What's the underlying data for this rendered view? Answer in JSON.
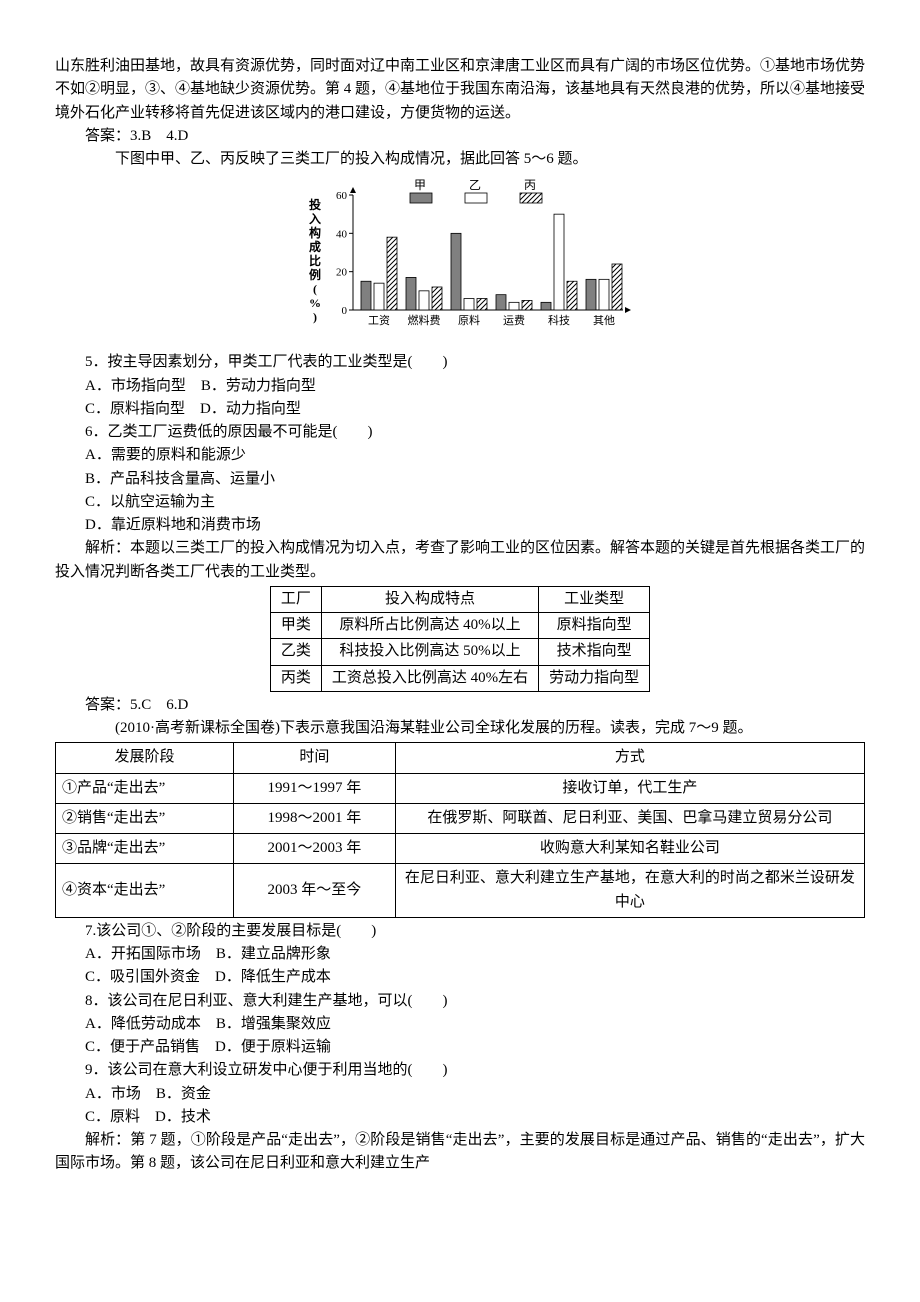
{
  "para1": "山东胜利油田基地，故具有资源优势，同时面对辽中南工业区和京津唐工业区而具有广阔的市场区位优势。①基地市场优势不如②明显，③、④基地缺少资源优势。第 4 题，④基地位于我国东南沿海，该基地具有天然良港的优势，所以④基地接受境外石化产业转移将首先促进该区域内的港口建设，方便货物的运送。",
  "ans34": "答案：3.B　4.D",
  "intro56": "下图中甲、乙、丙反映了三类工厂的投入构成情况，据此回答 5～6 题。",
  "chart": {
    "type": "bar",
    "y_title": "投入构成比例(%)",
    "y_min": 0,
    "y_max": 60,
    "y_step": 20,
    "categories": [
      "工资",
      "燃料费",
      "原料",
      "运费",
      "科技",
      "其他"
    ],
    "series": [
      {
        "name": "甲",
        "pattern": "solid-gray",
        "color": "#808080",
        "values": [
          15,
          17,
          40,
          8,
          4,
          16
        ]
      },
      {
        "name": "乙",
        "pattern": "hollow",
        "color": "#ffffff",
        "values": [
          14,
          10,
          6,
          4,
          50,
          16
        ]
      },
      {
        "name": "丙",
        "pattern": "hatch",
        "color": "#000000",
        "values": [
          38,
          12,
          6,
          5,
          15,
          24
        ]
      }
    ],
    "font_size": 12,
    "axis_font_size": 11,
    "bg": "#ffffff",
    "axis_color": "#000000"
  },
  "q5": {
    "stem": "5．按主导因素划分，甲类工厂代表的工业类型是(　　)",
    "a": "A．市场指向型　B．劳动力指向型",
    "b": "C．原料指向型　D．动力指向型"
  },
  "q6": {
    "stem": "6．乙类工厂运费低的原因最不可能是(　　)",
    "a": "A．需要的原料和能源少",
    "b": "B．产品科技含量高、运量小",
    "c": "C．以航空运输为主",
    "d": "D．靠近原料地和消费市场"
  },
  "analysis56": "解析：本题以三类工厂的投入构成情况为切入点，考查了影响工业的区位因素。解答本题的关键是首先根据各类工厂的投入情况判断各类工厂代表的工业类型。",
  "table56": {
    "headers": [
      "工厂",
      "投入构成特点",
      "工业类型"
    ],
    "rows": [
      [
        "甲类",
        "原料所占比例高达 40%以上",
        "原料指向型"
      ],
      [
        "乙类",
        "科技投入比例高达 50%以上",
        "技术指向型"
      ],
      [
        "丙类",
        "工资总投入比例高达 40%左右",
        "劳动力指向型"
      ]
    ]
  },
  "ans56": "答案：5.C　6.D",
  "intro79": "(2010·高考新课标全国卷)下表示意我国沿海某鞋业公司全球化发展的历程。读表，完成 7～9 题。",
  "table79": {
    "headers": [
      "发展阶段",
      "时间",
      "方式"
    ],
    "rows": [
      [
        "①产品“走出去”",
        "1991～1997 年",
        "接收订单，代工生产"
      ],
      [
        "②销售“走出去”",
        "1998～2001 年",
        "在俄罗斯、阿联酋、尼日利亚、美国、巴拿马建立贸易分公司"
      ],
      [
        "③品牌“走出去”",
        "2001～2003 年",
        "收购意大利某知名鞋业公司"
      ],
      [
        "④资本“走出去”",
        "2003 年～至今",
        "在尼日利亚、意大利建立生产基地，在意大利的时尚之都米兰设研发中心"
      ]
    ]
  },
  "q7": {
    "stem": "7.该公司①、②阶段的主要发展目标是(　　)",
    "a": "A．开拓国际市场　B．建立品牌形象",
    "b": "C．吸引国外资金　D．降低生产成本"
  },
  "q8": {
    "stem": "8．该公司在尼日利亚、意大利建生产基地，可以(　　)",
    "a": "A．降低劳动成本　B．增强集聚效应",
    "b": "C．便于产品销售　D．便于原料运输"
  },
  "q9": {
    "stem": "9．该公司在意大利设立研发中心便于利用当地的(　　)",
    "a": "A．市场　B．资金",
    "b": "C．原料　D．技术"
  },
  "analysis79": "解析：第 7 题，①阶段是产品“走出去”，②阶段是销售“走出去”，主要的发展目标是通过产品、销售的“走出去”，扩大国际市场。第 8 题，该公司在尼日利亚和意大利建立生产"
}
